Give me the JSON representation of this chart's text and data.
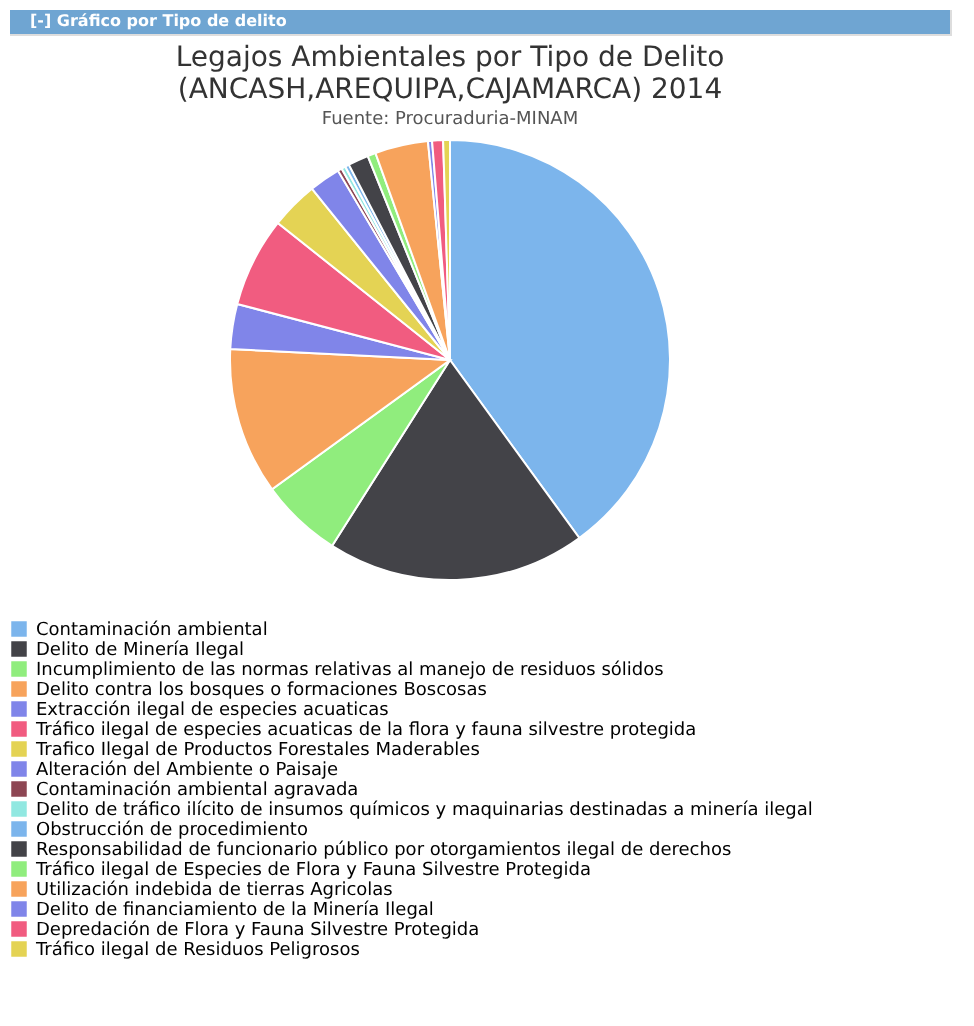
{
  "chart_data": {
    "type": "pie",
    "title": [
      "Legajos Ambientales por Tipo de Delito",
      "(ANCASH,AREQUIPA,CAJAMARCA) 2014"
    ],
    "subtitle": "Fuente: Procuraduria-MINAM",
    "annotations": [
      "[-] Gráfico por Tipo de delito"
    ],
    "categories": [
      "Contaminación ambiental",
      "Delito de Minería Ilegal",
      "Incumplimiento de las normas relativas al manejo de residuos sólidos",
      "Delito contra los bosques o formaciones Boscosas",
      "Extracción ilegal de especies acuaticas",
      "Tráfico ilegal de especies acuaticas de la flora y fauna silvestre protegida",
      "Trafico Ilegal de Productos Forestales Maderables",
      "Alteración del Ambiente o Paisaje",
      "Contaminación ambiental agravada",
      "Delito de tráfico ilícito de insumos químicos y maquinarias destinadas a minería ilegal",
      "Obstrucción de procedimiento",
      "Responsabilidad de funcionario público por otorgamientos ilegal de derechos",
      "Tráfico ilegal de Especies de Flora y Fauna Silvestre Protegida",
      "Utilización indebida de tierras Agricolas",
      "Delito de financiamiento de la Minería Ilegal",
      "Depredación de Flora y Fauna Silvestre Protegida",
      "Tráfico ilegal de Residuos Peligrosos"
    ],
    "values": [
      40,
      19,
      6,
      10.8,
      3.3,
      6.6,
      3.5,
      2.3,
      0.3,
      0.3,
      0.3,
      1.5,
      0.6,
      3.9,
      0.3,
      0.8,
      0.5
    ],
    "colors": [
      "#7cb5ec",
      "#434348",
      "#90ed7d",
      "#f7a35c",
      "#8085e9",
      "#f15c80",
      "#e4d354",
      "#8085e9",
      "#8d4653",
      "#91e8e1",
      "#7cb5ec",
      "#434348",
      "#90ed7d",
      "#f7a35c",
      "#8085e9",
      "#f15c80",
      "#e4d354"
    ],
    "legend": "bottom"
  }
}
